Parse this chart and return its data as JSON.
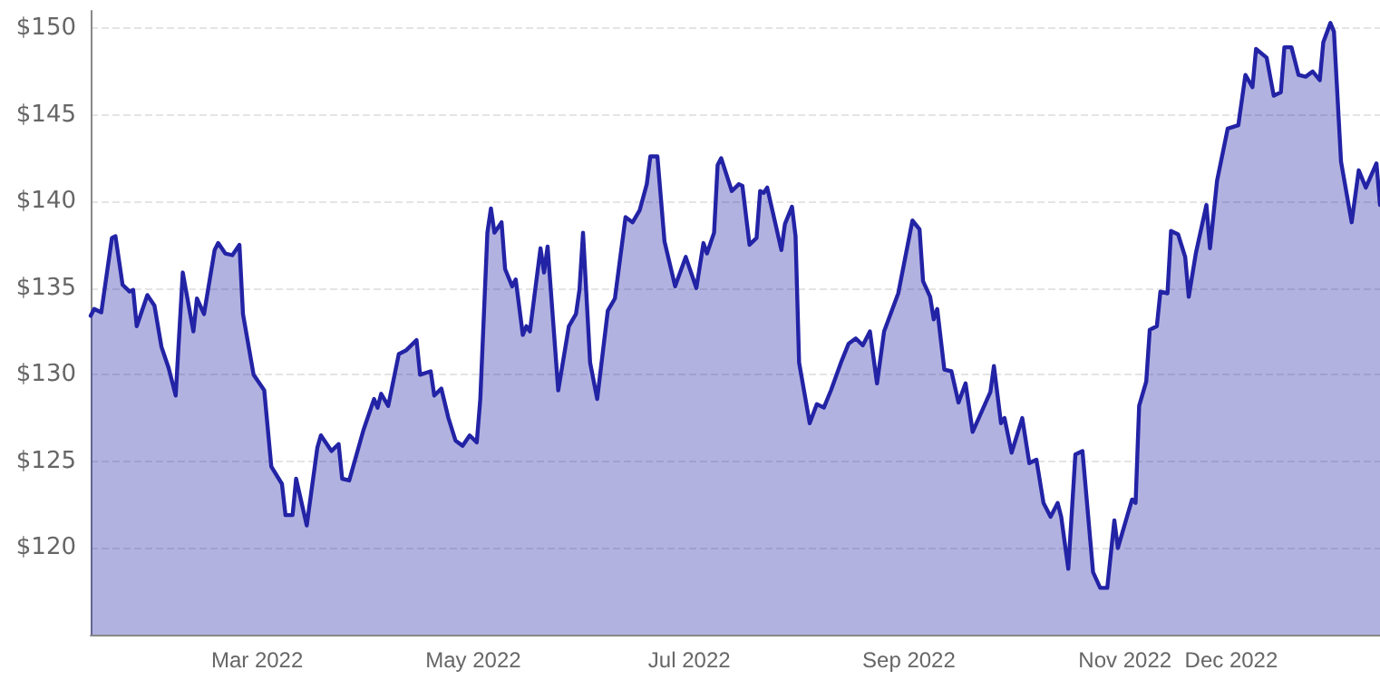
{
  "chart_data": {
    "type": "area",
    "x": [
      "2022-01-13",
      "2022-01-14",
      "2022-01-16",
      "2022-01-19",
      "2022-01-20",
      "2022-01-22",
      "2022-01-24",
      "2022-01-25",
      "2022-01-26",
      "2022-01-29",
      "2022-01-31",
      "2022-02-02",
      "2022-02-04",
      "2022-02-06",
      "2022-02-08",
      "2022-02-11",
      "2022-02-12",
      "2022-02-14",
      "2022-02-17",
      "2022-02-18",
      "2022-02-20",
      "2022-02-22",
      "2022-02-24",
      "2022-02-25",
      "2022-02-28",
      "2022-03-03",
      "2022-03-05",
      "2022-03-08",
      "2022-03-09",
      "2022-03-11",
      "2022-03-12",
      "2022-03-15",
      "2022-03-18",
      "2022-03-19",
      "2022-03-22",
      "2022-03-24",
      "2022-03-25",
      "2022-03-27",
      "2022-03-31",
      "2022-04-03",
      "2022-04-04",
      "2022-04-05",
      "2022-04-07",
      "2022-04-10",
      "2022-04-12",
      "2022-04-15",
      "2022-04-16",
      "2022-04-19",
      "2022-04-20",
      "2022-04-22",
      "2022-04-24",
      "2022-04-26",
      "2022-04-28",
      "2022-04-30",
      "2022-05-02",
      "2022-05-03",
      "2022-05-05",
      "2022-05-06",
      "2022-05-07",
      "2022-05-09",
      "2022-05-10",
      "2022-05-12",
      "2022-05-13",
      "2022-05-15",
      "2022-05-16",
      "2022-05-17",
      "2022-05-20",
      "2022-05-21",
      "2022-05-22",
      "2022-05-25",
      "2022-05-28",
      "2022-05-30",
      "2022-05-31",
      "2022-06-01",
      "2022-06-03",
      "2022-06-05",
      "2022-06-08",
      "2022-06-10",
      "2022-06-13",
      "2022-06-15",
      "2022-06-17",
      "2022-06-19",
      "2022-06-20",
      "2022-06-22",
      "2022-06-24",
      "2022-06-27",
      "2022-06-30",
      "2022-07-03",
      "2022-07-05",
      "2022-07-06",
      "2022-07-08",
      "2022-07-09",
      "2022-07-10",
      "2022-07-13",
      "2022-07-15",
      "2022-07-16",
      "2022-07-18",
      "2022-07-20",
      "2022-07-21",
      "2022-07-22",
      "2022-07-23",
      "2022-07-27",
      "2022-07-28",
      "2022-07-30",
      "2022-07-31",
      "2022-08-01",
      "2022-08-04",
      "2022-08-06",
      "2022-08-08",
      "2022-08-10",
      "2022-08-13",
      "2022-08-15",
      "2022-08-17",
      "2022-08-19",
      "2022-08-21",
      "2022-08-23",
      "2022-08-25",
      "2022-08-29",
      "2022-09-02",
      "2022-09-04",
      "2022-09-05",
      "2022-09-07",
      "2022-09-08",
      "2022-09-09",
      "2022-09-11",
      "2022-09-13",
      "2022-09-15",
      "2022-09-17",
      "2022-09-19",
      "2022-09-24",
      "2022-09-25",
      "2022-09-27",
      "2022-09-28",
      "2022-09-30",
      "2022-10-03",
      "2022-10-05",
      "2022-10-07",
      "2022-10-09",
      "2022-10-11",
      "2022-10-13",
      "2022-10-14",
      "2022-10-16",
      "2022-10-18",
      "2022-10-20",
      "2022-10-23",
      "2022-10-25",
      "2022-10-27",
      "2022-10-29",
      "2022-10-30",
      "2022-11-03",
      "2022-11-04",
      "2022-11-05",
      "2022-11-07",
      "2022-11-08",
      "2022-11-10",
      "2022-11-11",
      "2022-11-13",
      "2022-11-14",
      "2022-11-16",
      "2022-11-18",
      "2022-11-19",
      "2022-11-21",
      "2022-11-24",
      "2022-11-25",
      "2022-11-27",
      "2022-11-30",
      "2022-12-03",
      "2022-12-05",
      "2022-12-07",
      "2022-12-08",
      "2022-12-11",
      "2022-12-13",
      "2022-12-15",
      "2022-12-16",
      "2022-12-18",
      "2022-12-20",
      "2022-12-22",
      "2022-12-24",
      "2022-12-26",
      "2022-12-27",
      "2022-12-29",
      "2022-12-30",
      "2023-01-01",
      "2023-01-04",
      "2023-01-06",
      "2023-01-08",
      "2023-01-11",
      "2023-01-12"
    ],
    "series": [
      {
        "color": "#2323a6",
        "values": [
          133.4,
          133.8,
          133.6,
          137.9,
          138.0,
          135.2,
          134.8,
          134.9,
          132.8,
          134.6,
          134.0,
          131.6,
          130.4,
          128.8,
          135.9,
          132.5,
          134.4,
          133.5,
          137.2,
          137.6,
          137.0,
          136.9,
          137.5,
          133.5,
          130.0,
          129.1,
          124.7,
          123.7,
          121.9,
          121.9,
          124.0,
          121.3,
          125.8,
          126.5,
          125.6,
          126.0,
          124.0,
          123.9,
          126.8,
          128.6,
          128.1,
          128.9,
          128.2,
          131.2,
          131.4,
          132.0,
          130.0,
          130.2,
          128.8,
          129.2,
          127.5,
          126.2,
          125.9,
          126.5,
          126.1,
          128.6,
          138.2,
          139.6,
          138.2,
          138.8,
          136.1,
          135.1,
          135.5,
          132.3,
          132.8,
          132.5,
          137.3,
          135.9,
          137.4,
          129.1,
          132.8,
          133.5,
          134.9,
          138.2,
          130.7,
          128.6,
          133.7,
          134.4,
          139.1,
          138.8,
          139.5,
          141.0,
          142.6,
          142.6,
          137.7,
          135.1,
          136.8,
          135.0,
          137.6,
          137.0,
          138.2,
          142.1,
          142.5,
          140.6,
          141.0,
          140.9,
          137.5,
          137.9,
          140.6,
          140.5,
          140.8,
          137.2,
          138.7,
          139.7,
          138.0,
          130.7,
          127.2,
          128.3,
          128.1,
          129.1,
          130.8,
          131.8,
          132.1,
          131.7,
          132.5,
          129.5,
          132.5,
          134.7,
          138.9,
          138.4,
          135.4,
          134.5,
          133.2,
          133.8,
          130.3,
          130.2,
          128.4,
          129.5,
          126.7,
          129.0,
          130.5,
          127.2,
          127.5,
          125.5,
          127.5,
          124.9,
          125.1,
          122.6,
          121.8,
          122.6,
          121.8,
          118.8,
          125.4,
          125.6,
          118.6,
          117.7,
          117.7,
          121.6,
          120.0,
          122.8,
          122.6,
          128.2,
          129.6,
          132.6,
          132.8,
          134.8,
          134.7,
          138.3,
          138.1,
          136.8,
          134.5,
          137.0,
          139.8,
          137.3,
          141.2,
          144.2,
          144.4,
          147.3,
          146.6,
          148.8,
          148.3,
          146.1,
          146.3,
          148.9,
          148.9,
          147.3,
          147.2,
          147.5,
          147.0,
          149.2,
          150.3,
          149.8,
          142.3,
          138.8,
          141.8,
          140.8,
          142.2,
          139.8
        ]
      }
    ],
    "xlim": [
      "2022-01-13",
      "2023-01-12"
    ],
    "xticks": [
      {
        "value": "2022-03-01",
        "label": "Mar 2022"
      },
      {
        "value": "2022-05-01",
        "label": "May 2022"
      },
      {
        "value": "2022-07-01",
        "label": "Jul 2022"
      },
      {
        "value": "2022-09-01",
        "label": "Sep 2022"
      },
      {
        "value": "2022-11-01",
        "label": "Nov 2022"
      },
      {
        "value": "2022-12-01",
        "label": "Dec 2022"
      }
    ],
    "ylim": [
      115,
      151
    ],
    "yticks": [
      {
        "value": 120,
        "label": "$120"
      },
      {
        "value": 125,
        "label": "$125"
      },
      {
        "value": 130,
        "label": "$130"
      },
      {
        "value": 135,
        "label": "$135"
      },
      {
        "value": 140,
        "label": "$140"
      },
      {
        "value": 145,
        "label": "$145"
      },
      {
        "value": 150,
        "label": "$150"
      }
    ],
    "grid": "y",
    "marker": "none",
    "line_style": "solid"
  }
}
